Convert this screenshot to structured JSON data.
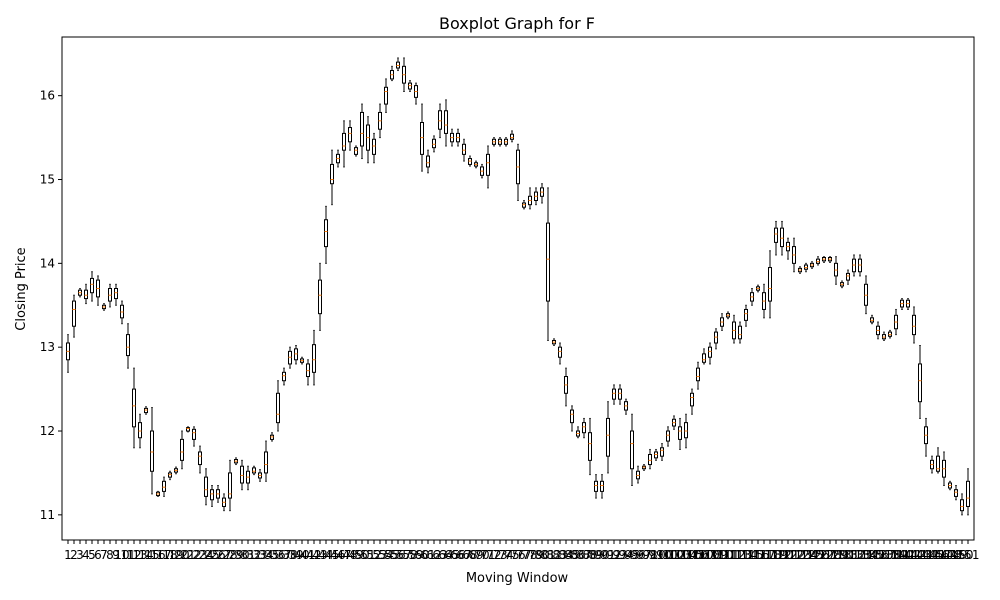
{
  "chart_data": {
    "type": "boxplot",
    "title": "Boxplot Graph for F",
    "xlabel": "Moving Window",
    "ylabel": "Closing Price",
    "ylim": [
      10.7,
      16.7
    ],
    "yticks": [
      11,
      12,
      13,
      14,
      15,
      16
    ],
    "grid": false,
    "colors": {
      "box": "#000000",
      "median": "#ff7f0e"
    },
    "categories": [
      "1",
      "2",
      "3",
      "4",
      "5",
      "6",
      "7",
      "8",
      "9",
      "10",
      "11",
      "12",
      "13",
      "14",
      "15",
      "16",
      "17",
      "18",
      "19",
      "20",
      "21",
      "22",
      "23",
      "24",
      "25",
      "26",
      "27",
      "28",
      "29",
      "30",
      "31",
      "32",
      "33",
      "34",
      "35",
      "36",
      "37",
      "38",
      "39",
      "40",
      "41",
      "42",
      "43",
      "44",
      "45",
      "46",
      "47",
      "48",
      "49",
      "50",
      "51",
      "52",
      "53",
      "54",
      "55",
      "56",
      "57",
      "58",
      "59",
      "60",
      "61",
      "62",
      "63",
      "64",
      "65",
      "66",
      "67",
      "68",
      "69",
      "70",
      "71",
      "72",
      "73",
      "74",
      "75",
      "76",
      "77",
      "78",
      "79",
      "80",
      "81",
      "82",
      "83",
      "84",
      "85",
      "86",
      "87",
      "88",
      "89",
      "90",
      "91",
      "92",
      "93",
      "94",
      "95",
      "96",
      "97",
      "98",
      "99",
      "100",
      "101",
      "102",
      "103",
      "104",
      "105",
      "106",
      "107",
      "108",
      "109",
      "110",
      "111",
      "112",
      "113",
      "114",
      "115",
      "116",
      "117",
      "118",
      "119",
      "120",
      "121",
      "122",
      "123",
      "124",
      "125",
      "126",
      "127",
      "128",
      "129",
      "130",
      "131",
      "132",
      "133",
      "134",
      "135",
      "136",
      "137",
      "138",
      "139",
      "140",
      "141",
      "142",
      "143",
      "144",
      "145",
      "146",
      "147",
      "148",
      "149",
      "150",
      "151"
    ],
    "medians": [
      12.95,
      13.45,
      13.65,
      13.62,
      13.75,
      13.7,
      13.48,
      13.62,
      13.65,
      13.42,
      13.0,
      12.3,
      12.0,
      12.25,
      11.75,
      11.25,
      11.33,
      11.48,
      11.53,
      11.75,
      12.03,
      11.98,
      11.7,
      11.3,
      11.25,
      11.25,
      11.15,
      11.25,
      11.64,
      11.47,
      11.45,
      11.52,
      11.47,
      11.6,
      11.93,
      12.2,
      12.66,
      12.88,
      12.92,
      12.84,
      12.72,
      12.85,
      13.62,
      14.38,
      15.0,
      15.25,
      15.4,
      15.55,
      15.35,
      15.55,
      15.5,
      15.4,
      15.7,
      16.05,
      16.25,
      16.36,
      16.25,
      16.12,
      16.05,
      15.5,
      15.2,
      15.42,
      15.7,
      15.65,
      15.5,
      15.5,
      15.35,
      15.22,
      15.18,
      15.1,
      15.2,
      15.45,
      15.45,
      15.45,
      15.5,
      15.15,
      14.7,
      14.75,
      14.8,
      14.85,
      14.05,
      13.06,
      12.95,
      12.55,
      12.2,
      11.97,
      12.05,
      11.85,
      11.35,
      11.35,
      11.95,
      12.45,
      12.45,
      12.3,
      11.85,
      11.47,
      11.57,
      11.65,
      11.72,
      11.77,
      11.95,
      12.1,
      12.0,
      12.0,
      12.4,
      12.65,
      12.85,
      12.95,
      13.12,
      13.3,
      13.38,
      13.2,
      13.15,
      13.4,
      13.6,
      13.7,
      13.55,
      13.7,
      14.35,
      14.3,
      14.2,
      14.1,
      13.92,
      13.95,
      13.98,
      14.02,
      14.05,
      14.05,
      13.92,
      13.75,
      13.85,
      13.98,
      13.98,
      13.62,
      13.32,
      13.2,
      13.12,
      13.15,
      13.3,
      13.52,
      13.52,
      13.25,
      12.6,
      11.95,
      11.6,
      11.55,
      11.55,
      11.35,
      11.27,
      11.1,
      11.2,
      11.6
    ],
    "q1": [
      12.85,
      13.25,
      13.62,
      13.58,
      13.65,
      13.6,
      13.46,
      13.55,
      13.58,
      13.35,
      12.9,
      12.05,
      11.92,
      12.22,
      11.52,
      11.23,
      11.28,
      11.45,
      11.51,
      11.65,
      12.0,
      11.9,
      11.6,
      11.22,
      11.18,
      11.2,
      11.1,
      11.2,
      11.62,
      11.38,
      11.38,
      11.5,
      11.44,
      11.5,
      11.9,
      12.1,
      12.6,
      12.8,
      12.85,
      12.82,
      12.65,
      12.7,
      13.4,
      14.2,
      14.95,
      15.2,
      15.35,
      15.45,
      15.3,
      15.4,
      15.35,
      15.3,
      15.6,
      15.9,
      16.2,
      16.33,
      16.15,
      16.08,
      15.98,
      15.3,
      15.15,
      15.38,
      15.6,
      15.55,
      15.45,
      15.45,
      15.3,
      15.18,
      15.16,
      15.05,
      15.05,
      15.42,
      15.42,
      15.42,
      15.48,
      14.95,
      14.67,
      14.7,
      14.75,
      14.8,
      13.55,
      13.04,
      12.88,
      12.45,
      12.1,
      11.94,
      11.98,
      11.65,
      11.28,
      11.28,
      11.7,
      12.38,
      12.38,
      12.25,
      11.55,
      11.43,
      11.55,
      11.6,
      11.68,
      11.7,
      11.88,
      12.06,
      11.9,
      11.92,
      12.3,
      12.6,
      12.82,
      12.88,
      13.05,
      13.25,
      13.36,
      13.1,
      13.1,
      13.32,
      13.55,
      13.68,
      13.45,
      13.55,
      14.25,
      14.2,
      14.15,
      14.0,
      13.9,
      13.93,
      13.96,
      14.0,
      14.03,
      14.03,
      13.85,
      13.73,
      13.8,
      13.9,
      13.9,
      13.5,
      13.3,
      13.15,
      13.1,
      13.13,
      13.22,
      13.48,
      13.48,
      13.15,
      12.35,
      11.85,
      11.55,
      11.52,
      11.45,
      11.32,
      11.22,
      11.05,
      11.1,
      11.57
    ],
    "q3": [
      13.05,
      13.55,
      13.68,
      13.68,
      13.82,
      13.8,
      13.5,
      13.7,
      13.7,
      13.5,
      13.15,
      12.5,
      12.1,
      12.27,
      12.0,
      11.27,
      11.4,
      11.5,
      11.55,
      11.9,
      12.04,
      12.02,
      11.75,
      11.45,
      11.3,
      11.3,
      11.2,
      11.5,
      11.66,
      11.58,
      11.52,
      11.56,
      11.5,
      11.75,
      11.95,
      12.45,
      12.7,
      12.95,
      12.98,
      12.86,
      12.8,
      13.03,
      13.8,
      14.52,
      15.18,
      15.3,
      15.55,
      15.62,
      15.38,
      15.8,
      15.65,
      15.48,
      15.8,
      16.1,
      16.3,
      16.4,
      16.35,
      16.15,
      16.12,
      15.68,
      15.28,
      15.48,
      15.82,
      15.82,
      15.55,
      15.55,
      15.42,
      15.25,
      15.2,
      15.15,
      15.3,
      15.48,
      15.48,
      15.48,
      15.54,
      15.35,
      14.72,
      14.8,
      14.85,
      14.9,
      14.48,
      13.08,
      13.0,
      12.65,
      12.25,
      12.0,
      12.1,
      11.98,
      11.4,
      11.4,
      12.15,
      12.5,
      12.5,
      12.35,
      12.0,
      11.52,
      11.58,
      11.72,
      11.75,
      11.8,
      12.0,
      12.14,
      12.05,
      12.1,
      12.45,
      12.75,
      12.92,
      13.0,
      13.18,
      13.35,
      13.4,
      13.3,
      13.25,
      13.45,
      13.65,
      13.72,
      13.65,
      13.95,
      14.42,
      14.42,
      14.25,
      14.2,
      13.94,
      13.98,
      14.0,
      14.05,
      14.07,
      14.07,
      14.0,
      13.77,
      13.88,
      14.05,
      14.05,
      13.75,
      13.35,
      13.25,
      13.15,
      13.18,
      13.38,
      13.56,
      13.56,
      13.38,
      12.8,
      12.05,
      11.65,
      11.7,
      11.65,
      11.38,
      11.3,
      11.18,
      11.4,
      11.63
    ],
    "whisker_low": [
      12.7,
      13.12,
      13.6,
      13.52,
      13.55,
      13.5,
      13.44,
      13.48,
      13.5,
      13.28,
      12.75,
      11.8,
      11.8,
      12.2,
      11.25,
      11.22,
      11.22,
      11.42,
      11.49,
      11.55,
      11.99,
      11.82,
      11.5,
      11.12,
      11.1,
      11.15,
      11.05,
      11.05,
      11.6,
      11.3,
      11.3,
      11.48,
      11.4,
      11.4,
      11.88,
      12.0,
      12.55,
      12.75,
      12.8,
      12.8,
      12.55,
      12.55,
      13.2,
      14.0,
      14.7,
      15.15,
      15.15,
      15.35,
      15.28,
      15.25,
      15.2,
      15.2,
      15.5,
      15.8,
      16.18,
      16.3,
      16.05,
      16.05,
      15.9,
      15.1,
      15.08,
      15.33,
      15.5,
      15.4,
      15.4,
      15.4,
      15.22,
      15.16,
      15.14,
      15.02,
      14.9,
      15.4,
      15.4,
      15.4,
      15.45,
      14.75,
      14.65,
      14.65,
      14.7,
      14.72,
      13.08,
      13.02,
      12.8,
      12.3,
      12.0,
      11.92,
      11.92,
      11.48,
      11.2,
      11.2,
      11.5,
      12.32,
      12.32,
      12.2,
      11.35,
      11.38,
      11.53,
      11.55,
      11.65,
      11.65,
      11.82,
      12.02,
      11.78,
      11.8,
      12.2,
      12.5,
      12.8,
      12.8,
      12.98,
      13.2,
      13.34,
      13.05,
      13.05,
      13.25,
      13.5,
      13.66,
      13.35,
      13.35,
      14.1,
      14.1,
      14.05,
      13.9,
      13.88,
      13.9,
      13.94,
      13.98,
      14.01,
      14.01,
      13.75,
      13.71,
      13.75,
      13.85,
      13.85,
      13.4,
      13.28,
      13.1,
      13.08,
      13.11,
      13.15,
      13.45,
      13.45,
      13.05,
      12.15,
      11.7,
      11.5,
      11.5,
      11.35,
      11.3,
      11.18,
      11.0,
      11.0,
      11.55
    ],
    "whisker_high": [
      13.15,
      13.62,
      13.7,
      13.75,
      13.9,
      13.85,
      13.52,
      13.75,
      13.75,
      13.55,
      13.28,
      12.75,
      12.2,
      12.29,
      12.28,
      11.28,
      11.45,
      11.52,
      11.57,
      12.0,
      12.05,
      12.05,
      11.82,
      11.55,
      11.35,
      11.35,
      11.25,
      11.65,
      11.68,
      11.65,
      11.58,
      11.58,
      11.54,
      11.88,
      11.98,
      12.6,
      12.75,
      13.0,
      13.02,
      12.88,
      12.85,
      13.2,
      14.0,
      14.68,
      15.35,
      15.35,
      15.7,
      15.7,
      15.4,
      15.9,
      15.75,
      15.55,
      15.9,
      16.2,
      16.35,
      16.45,
      16.45,
      16.18,
      16.15,
      15.9,
      15.35,
      15.52,
      15.9,
      15.95,
      15.6,
      15.6,
      15.48,
      15.28,
      15.22,
      15.18,
      15.4,
      15.5,
      15.5,
      15.5,
      15.58,
      15.42,
      14.75,
      14.9,
      14.9,
      14.95,
      14.9,
      13.1,
      13.05,
      12.75,
      12.3,
      12.05,
      12.15,
      12.15,
      11.48,
      11.48,
      12.35,
      12.55,
      12.55,
      12.38,
      12.2,
      11.58,
      11.6,
      11.78,
      11.78,
      11.85,
      12.05,
      12.18,
      12.15,
      12.2,
      12.5,
      12.82,
      12.98,
      13.05,
      13.22,
      13.4,
      13.42,
      13.38,
      13.3,
      13.5,
      13.7,
      13.74,
      13.75,
      14.15,
      14.5,
      14.5,
      14.3,
      14.3,
      13.96,
      14.0,
      14.02,
      14.08,
      14.08,
      14.08,
      14.08,
      13.79,
      13.92,
      14.1,
      14.1,
      13.85,
      13.38,
      13.3,
      13.18,
      13.2,
      13.45,
      13.58,
      13.58,
      13.48,
      13.02,
      12.15,
      11.7,
      11.8,
      11.75,
      11.4,
      11.35,
      11.25,
      11.55,
      11.66
    ]
  }
}
